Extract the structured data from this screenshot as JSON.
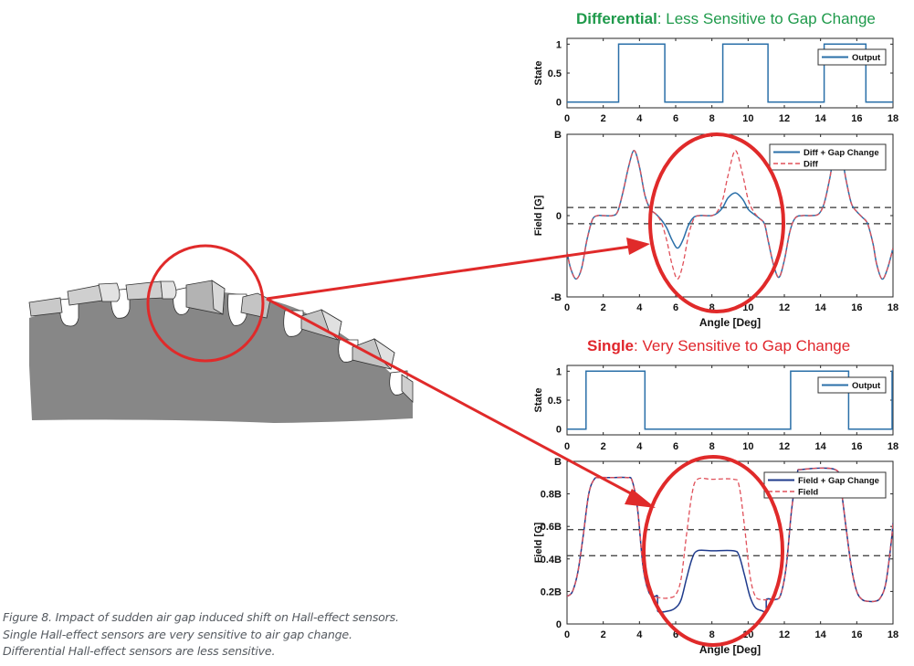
{
  "colors": {
    "diff_title": "#1f9a4b",
    "single_title": "#e0262c",
    "blue": "#2a6fa8",
    "navy": "#1f3b8c",
    "red_dash": "#e0505a",
    "annotation_red": "#e02a2a",
    "gear_body": "#878787",
    "tooth_light": "#cfcfcf"
  },
  "differential": {
    "title_bold": "Differential",
    "title_rest": ": Less Sensitive to Gap Change"
  },
  "single": {
    "title_bold": "Single",
    "title_rest": ": Very Sensitive to Gap Change"
  },
  "caption": {
    "lines": [
      "Figure 8. Impact of sudden air gap induced shift on Hall-effect sensors.",
      "Single Hall-effect sensors are very sensitive to air gap change.",
      "Differential Hall-effect sensors are less sensitive."
    ]
  },
  "chart_data": [
    {
      "id": "diff_state",
      "type": "line",
      "title": "Differential: Less Sensitive to Gap Change",
      "xlabel": "",
      "ylabel": "State",
      "xlim": [
        0,
        18
      ],
      "ylim": [
        -0.1,
        1.1
      ],
      "xticks": [
        "0",
        "2",
        "4",
        "6",
        "8",
        "10",
        "12",
        "14",
        "16",
        "18"
      ],
      "yticks": [
        {
          "v": 0,
          "label": "0"
        },
        {
          "v": 0.5,
          "label": "0.5"
        },
        {
          "v": 1,
          "label": "1"
        }
      ],
      "legend": [
        {
          "name": "Output",
          "style": "solid",
          "color": "#2a6fa8"
        }
      ],
      "legend_position": "upper right",
      "series": [
        {
          "name": "Output",
          "step": true,
          "x": [
            0,
            2.85,
            2.85,
            5.4,
            5.4,
            8.6,
            8.6,
            11.1,
            11.1,
            14.2,
            14.2,
            16.5,
            16.5,
            18
          ],
          "y": [
            0,
            0,
            1,
            1,
            0,
            0,
            1,
            1,
            0,
            0,
            1,
            1,
            0,
            0
          ]
        }
      ]
    },
    {
      "id": "diff_field",
      "type": "line",
      "title": "",
      "xlabel": "Angle [Deg]",
      "ylabel": "Field [G]",
      "xlim": [
        0,
        18
      ],
      "ylim": [
        -1,
        1
      ],
      "xticks": [
        "0",
        "2",
        "4",
        "6",
        "8",
        "10",
        "12",
        "14",
        "16",
        "18"
      ],
      "yticks": [
        {
          "v": -1,
          "label": "-B"
        },
        {
          "v": 0,
          "label": "0"
        },
        {
          "v": 1,
          "label": "B"
        }
      ],
      "thresholds": [
        0.1,
        -0.1
      ],
      "legend": [
        {
          "name": "Diff + Gap Change",
          "style": "solid",
          "color": "#2a6fa8"
        },
        {
          "name": "Diff",
          "style": "dashed",
          "color": "#e0505a"
        }
      ],
      "legend_position": "upper right",
      "series": [
        {
          "name": "Diff + Gap Change",
          "x": [
            0,
            0.2,
            0.5,
            0.8,
            1.1,
            1.4,
            1.7,
            2.0,
            2.5,
            2.8,
            3.1,
            3.4,
            3.7,
            4.0,
            4.3,
            4.6,
            4.9,
            5.2,
            5.5,
            5.8,
            6.1,
            6.4,
            6.7,
            7.0,
            7.3,
            7.6,
            8.0,
            8.3,
            8.6,
            8.9,
            9.3,
            9.7,
            10.0,
            10.3,
            10.6,
            10.9,
            11.1,
            11.4,
            11.7,
            12.0,
            12.3,
            12.6,
            13.0,
            13.5,
            13.9,
            14.2,
            14.5,
            14.8,
            15.1,
            15.4,
            15.7,
            16.0,
            16.3,
            16.6,
            16.9,
            17.1,
            17.4,
            17.7,
            18
          ],
          "y": [
            -0.45,
            -0.65,
            -0.78,
            -0.65,
            -0.3,
            -0.05,
            0,
            0,
            0,
            0.05,
            0.3,
            0.6,
            0.8,
            0.6,
            0.25,
            0.08,
            0.02,
            -0.05,
            -0.15,
            -0.3,
            -0.4,
            -0.3,
            -0.12,
            -0.02,
            0,
            0,
            0,
            0.03,
            0.1,
            0.22,
            0.28,
            0.2,
            0.08,
            0.02,
            -0.03,
            -0.1,
            -0.3,
            -0.6,
            -0.76,
            -0.55,
            -0.2,
            -0.03,
            0,
            0,
            0.02,
            0.15,
            0.45,
            0.8,
            0.8,
            0.45,
            0.15,
            0.05,
            -0.02,
            -0.1,
            -0.35,
            -0.6,
            -0.78,
            -0.65,
            -0.4
          ]
        },
        {
          "name": "Diff",
          "dashed": true,
          "x": [
            0,
            0.2,
            0.5,
            0.8,
            1.1,
            1.4,
            1.7,
            2.0,
            2.5,
            2.8,
            3.1,
            3.4,
            3.7,
            4.0,
            4.3,
            4.6,
            4.9,
            5.2,
            5.5,
            5.8,
            6.1,
            6.4,
            6.7,
            7.0,
            7.3,
            7.6,
            8.0,
            8.3,
            8.6,
            8.9,
            9.3,
            9.7,
            10.0,
            10.3,
            10.6,
            10.9,
            11.1,
            11.4,
            11.7,
            12.0,
            12.3,
            12.6,
            13.0,
            13.5,
            13.9,
            14.2,
            14.5,
            14.8,
            15.1,
            15.4,
            15.7,
            16.0,
            16.3,
            16.6,
            16.9,
            17.1,
            17.4,
            17.7,
            18
          ],
          "y": [
            -0.45,
            -0.65,
            -0.78,
            -0.65,
            -0.3,
            -0.05,
            0,
            0,
            0,
            0.05,
            0.3,
            0.6,
            0.8,
            0.6,
            0.25,
            0.08,
            0.02,
            -0.08,
            -0.3,
            -0.6,
            -0.78,
            -0.6,
            -0.25,
            -0.04,
            0,
            0,
            0,
            0.05,
            0.2,
            0.5,
            0.8,
            0.5,
            0.2,
            0.05,
            -0.03,
            -0.1,
            -0.3,
            -0.6,
            -0.76,
            -0.55,
            -0.2,
            -0.03,
            0,
            0,
            0.02,
            0.15,
            0.45,
            0.8,
            0.8,
            0.45,
            0.15,
            0.05,
            -0.02,
            -0.1,
            -0.35,
            -0.6,
            -0.78,
            -0.65,
            -0.4
          ]
        }
      ]
    },
    {
      "id": "single_state",
      "type": "line",
      "title": "Single: Very Sensitive to Gap Change",
      "xlabel": "",
      "ylabel": "State",
      "xlim": [
        0,
        18
      ],
      "ylim": [
        -0.1,
        1.1
      ],
      "xticks": [
        "0",
        "2",
        "4",
        "6",
        "8",
        "10",
        "12",
        "14",
        "16",
        "18"
      ],
      "yticks": [
        {
          "v": 0,
          "label": "0"
        },
        {
          "v": 0.5,
          "label": "0.5"
        },
        {
          "v": 1,
          "label": "1"
        }
      ],
      "legend": [
        {
          "name": "Output",
          "style": "solid",
          "color": "#2a6fa8"
        }
      ],
      "legend_position": "upper right",
      "series": [
        {
          "name": "Output",
          "step": true,
          "x": [
            0,
            1.05,
            1.05,
            4.3,
            4.3,
            12.35,
            12.35,
            15.55,
            15.55,
            17.95,
            17.95,
            18
          ],
          "y": [
            0,
            0,
            1,
            1,
            0,
            0,
            1,
            1,
            0,
            0,
            1,
            1
          ]
        }
      ]
    },
    {
      "id": "single_field",
      "type": "line",
      "title": "",
      "xlabel": "Angle [Deg]",
      "ylabel": "Field [G]",
      "xlim": [
        0,
        18
      ],
      "ylim": [
        0,
        1
      ],
      "xticks": [
        "0",
        "2",
        "4",
        "6",
        "8",
        "10",
        "12",
        "14",
        "16",
        "18"
      ],
      "yticks": [
        {
          "v": 0,
          "label": "0"
        },
        {
          "v": 0.2,
          "label": "0.2B"
        },
        {
          "v": 0.4,
          "label": "0.4B"
        },
        {
          "v": 0.6,
          "label": "0.6B"
        },
        {
          "v": 0.8,
          "label": "0.8B"
        },
        {
          "v": 1,
          "label": "B"
        }
      ],
      "thresholds": [
        0.58,
        0.42
      ],
      "legend": [
        {
          "name": "Field + Gap Change",
          "style": "solid",
          "color": "#1f3b8c"
        },
        {
          "name": "Field",
          "style": "dashed",
          "color": "#e0505a"
        }
      ],
      "legend_position": "upper right",
      "series": [
        {
          "name": "Field + Gap Change",
          "x": [
            0,
            0.3,
            0.6,
            0.9,
            1.2,
            1.5,
            1.8,
            2.5,
            3.3,
            3.6,
            3.9,
            4.2,
            4.5,
            4.8,
            5.0,
            5.0,
            5.6,
            6.0,
            6.3,
            6.6,
            6.9,
            7.2,
            8.0,
            9.2,
            9.5,
            9.8,
            10.1,
            10.4,
            10.8,
            11.0,
            11.0,
            11.5,
            11.8,
            12.1,
            12.4,
            12.7,
            13.0,
            14.8,
            15.1,
            15.4,
            15.7,
            16.0,
            16.3,
            16.6,
            17.0,
            17.3,
            17.6,
            17.9,
            18
          ],
          "y": [
            0.17,
            0.2,
            0.32,
            0.55,
            0.8,
            0.89,
            0.9,
            0.9,
            0.9,
            0.88,
            0.7,
            0.35,
            0.2,
            0.17,
            0.17,
            0.08,
            0.08,
            0.1,
            0.15,
            0.28,
            0.4,
            0.45,
            0.45,
            0.45,
            0.42,
            0.3,
            0.17,
            0.1,
            0.08,
            0.07,
            0.15,
            0.15,
            0.18,
            0.35,
            0.7,
            0.92,
            0.95,
            0.95,
            0.85,
            0.6,
            0.35,
            0.2,
            0.15,
            0.14,
            0.14,
            0.16,
            0.25,
            0.5,
            0.62
          ]
        },
        {
          "name": "Field",
          "dashed": true,
          "x": [
            0,
            0.3,
            0.6,
            0.9,
            1.2,
            1.5,
            1.8,
            2.5,
            3.3,
            3.6,
            3.9,
            4.2,
            4.5,
            4.8,
            5.2,
            5.6,
            6.0,
            6.3,
            6.6,
            6.9,
            7.2,
            8.0,
            9.2,
            9.5,
            9.8,
            10.1,
            10.4,
            10.8,
            11.2,
            11.5,
            11.8,
            12.1,
            12.4,
            12.7,
            13.0,
            14.8,
            15.1,
            15.4,
            15.7,
            16.0,
            16.3,
            16.6,
            17.0,
            17.3,
            17.6,
            17.9,
            18
          ],
          "y": [
            0.17,
            0.2,
            0.32,
            0.55,
            0.8,
            0.89,
            0.9,
            0.9,
            0.9,
            0.88,
            0.7,
            0.35,
            0.2,
            0.17,
            0.16,
            0.16,
            0.18,
            0.28,
            0.55,
            0.8,
            0.89,
            0.89,
            0.89,
            0.85,
            0.6,
            0.3,
            0.17,
            0.15,
            0.15,
            0.15,
            0.18,
            0.35,
            0.7,
            0.92,
            0.95,
            0.95,
            0.85,
            0.6,
            0.35,
            0.2,
            0.15,
            0.14,
            0.14,
            0.16,
            0.25,
            0.5,
            0.62
          ]
        }
      ]
    }
  ]
}
